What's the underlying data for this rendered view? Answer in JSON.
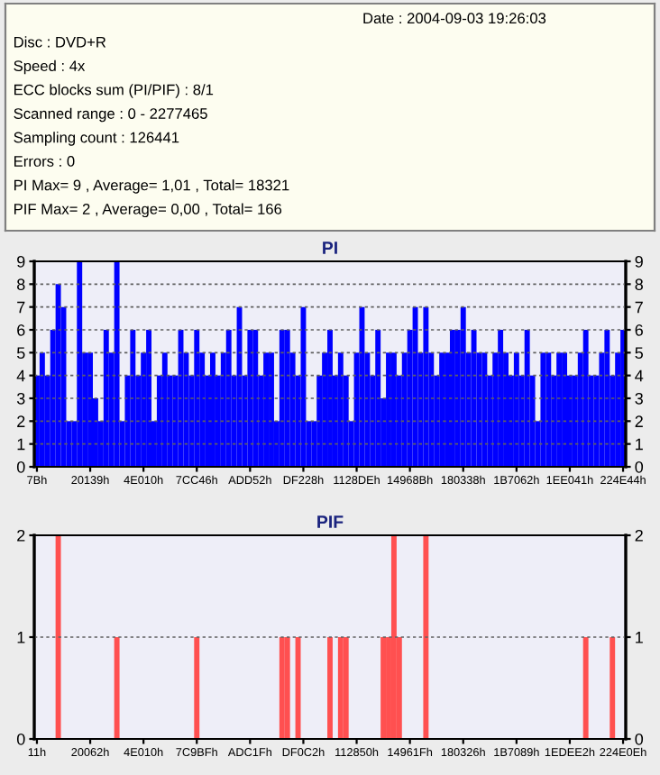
{
  "chart_data": [
    {
      "type": "other",
      "annotations": [
        "Date : 2004-09-03 19:26:03",
        "Disc : DVD+R",
        "Speed : 4x",
        "ECC blocks sum (PI/PIF) : 8/1",
        "Scanned range : 0 - 2277465",
        "Sampling count : 126441",
        "Errors : 0",
        "PI Max= 9 , Average= 1,01 , Total= 18321",
        "PIF Max= 2 , Average= 0,00 , Total= 166"
      ]
    },
    {
      "type": "bar",
      "title": "PI",
      "categories": [
        "7Bh",
        null,
        null,
        null,
        null,
        null,
        null,
        null,
        null,
        null,
        "20139h",
        null,
        null,
        null,
        null,
        null,
        null,
        null,
        null,
        null,
        "4E010h",
        null,
        null,
        null,
        null,
        null,
        null,
        null,
        null,
        null,
        "7CC46h",
        null,
        null,
        null,
        null,
        null,
        null,
        null,
        null,
        null,
        "ADD52h",
        null,
        null,
        null,
        null,
        null,
        null,
        null,
        null,
        null,
        "DF228h",
        null,
        null,
        null,
        null,
        null,
        null,
        null,
        null,
        null,
        "1128DEh",
        null,
        null,
        null,
        null,
        null,
        null,
        null,
        null,
        null,
        "14968Bh",
        null,
        null,
        null,
        null,
        null,
        null,
        null,
        null,
        null,
        "180338h",
        null,
        null,
        null,
        null,
        null,
        null,
        null,
        null,
        null,
        "1B7062h",
        null,
        null,
        null,
        null,
        null,
        null,
        null,
        null,
        null,
        "1EE041h",
        null,
        null,
        null,
        null,
        null,
        null,
        null,
        null,
        null,
        "224E44h"
      ],
      "series": [
        {
          "color": "#0000ff",
          "values": [
            4,
            5,
            4,
            6,
            8,
            7,
            2,
            2,
            9,
            5,
            5,
            3,
            2,
            6,
            5,
            9,
            2,
            4,
            6,
            4,
            5,
            6,
            2,
            4,
            5,
            4,
            4,
            6,
            5,
            4,
            6,
            5,
            4,
            5,
            4,
            5,
            6,
            4,
            7,
            4,
            6,
            6,
            4,
            5,
            5,
            2,
            6,
            6,
            5,
            4,
            7,
            2,
            2,
            4,
            5,
            6,
            4,
            5,
            4,
            2,
            5,
            7,
            5,
            4,
            6,
            3,
            5,
            5,
            4,
            5,
            6,
            7,
            5,
            7,
            5,
            4,
            5,
            5,
            6,
            6,
            7,
            5,
            6,
            5,
            5,
            4,
            5,
            6,
            5,
            4,
            5,
            4,
            6,
            4,
            2,
            5,
            5,
            4,
            5,
            5,
            4,
            4,
            5,
            6,
            4,
            4,
            5,
            6,
            4,
            5,
            6
          ]
        }
      ],
      "ylim": [
        0,
        9
      ],
      "yticks": [
        0,
        1,
        2,
        3,
        4,
        5,
        6,
        7,
        8,
        9
      ],
      "y2lim": [
        0,
        9
      ],
      "y2ticks": [
        0,
        1,
        2,
        3,
        4,
        5,
        6,
        7,
        8,
        9
      ],
      "grid": "y"
    },
    {
      "type": "bar",
      "title": "PIF",
      "categories": [
        "11h",
        null,
        null,
        null,
        null,
        null,
        null,
        null,
        null,
        null,
        "20062h",
        null,
        null,
        null,
        null,
        null,
        null,
        null,
        null,
        null,
        "4E010h",
        null,
        null,
        null,
        null,
        null,
        null,
        null,
        null,
        null,
        "7C9BFh",
        null,
        null,
        null,
        null,
        null,
        null,
        null,
        null,
        null,
        "ADC1Fh",
        null,
        null,
        null,
        null,
        null,
        null,
        null,
        null,
        null,
        "DF0C2h",
        null,
        null,
        null,
        null,
        null,
        null,
        null,
        null,
        null,
        "112850h",
        null,
        null,
        null,
        null,
        null,
        null,
        null,
        null,
        null,
        "14961Fh",
        null,
        null,
        null,
        null,
        null,
        null,
        null,
        null,
        null,
        "180326h",
        null,
        null,
        null,
        null,
        null,
        null,
        null,
        null,
        null,
        "1B7089h",
        null,
        null,
        null,
        null,
        null,
        null,
        null,
        null,
        null,
        "1EDEE2h",
        null,
        null,
        null,
        null,
        null,
        null,
        null,
        null,
        null,
        "224E0Eh"
      ],
      "series": [
        {
          "color": "#ff5050",
          "values": [
            0,
            0,
            0,
            0,
            2,
            0,
            0,
            0,
            0,
            0,
            0,
            0,
            0,
            0,
            0,
            1,
            0,
            0,
            0,
            0,
            0,
            0,
            0,
            0,
            0,
            0,
            0,
            0,
            0,
            0,
            1,
            0,
            0,
            0,
            0,
            0,
            0,
            0,
            0,
            0,
            0,
            0,
            0,
            0,
            0,
            0,
            1,
            1,
            0,
            1,
            0,
            0,
            0,
            0,
            0,
            1,
            0,
            1,
            1,
            0,
            0,
            0,
            0,
            0,
            0,
            1,
            1,
            2,
            1,
            0,
            0,
            0,
            0,
            2,
            0,
            0,
            0,
            0,
            0,
            0,
            0,
            0,
            0,
            0,
            0,
            0,
            0,
            0,
            0,
            0,
            0,
            0,
            0,
            0,
            0,
            0,
            0,
            0,
            0,
            0,
            0,
            0,
            0,
            1,
            0,
            0,
            0,
            0,
            1,
            0,
            0
          ]
        }
      ],
      "ylim": [
        0,
        2
      ],
      "yticks": [
        0,
        1,
        2
      ],
      "y2lim": [
        0,
        2
      ],
      "y2ticks": [
        0,
        1,
        2
      ],
      "grid": "y"
    }
  ]
}
